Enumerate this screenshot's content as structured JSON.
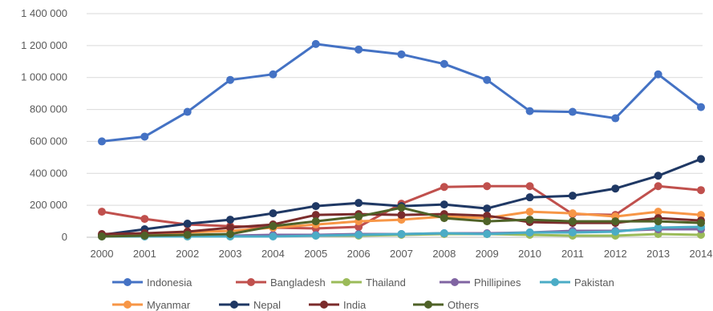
{
  "chart_data": {
    "type": "line",
    "title": "",
    "xlabel": "",
    "ylabel": "",
    "x": [
      "2000",
      "2001",
      "2002",
      "2003",
      "2004",
      "2005",
      "2006",
      "2007",
      "2008",
      "2009",
      "2010",
      "2011",
      "2012",
      "2013",
      "2014"
    ],
    "ylim": [
      0,
      1400000
    ],
    "yticks": [
      0,
      200000,
      400000,
      600000,
      800000,
      1000000,
      1200000,
      1400000
    ],
    "ytick_labels": [
      "0",
      "200 000",
      "400 000",
      "600 000",
      "800 000",
      "1 000 000",
      "1 200 000",
      "1 400 000"
    ],
    "grid": true,
    "legend_position": "bottom",
    "series": [
      {
        "name": "Indonesia",
        "color": "#4472C4",
        "values": [
          600000,
          630000,
          785000,
          985000,
          1020000,
          1210000,
          1175000,
          1145000,
          1085000,
          985000,
          790000,
          785000,
          745000,
          1020000,
          815000
        ]
      },
      {
        "name": "Bangladesh",
        "color": "#C0504D",
        "values": [
          160000,
          115000,
          80000,
          70000,
          60000,
          55000,
          65000,
          210000,
          315000,
          320000,
          320000,
          145000,
          140000,
          320000,
          295000
        ]
      },
      {
        "name": "Thailand",
        "color": "#9BBB59",
        "values": [
          5000,
          5000,
          5000,
          5000,
          10000,
          10000,
          10000,
          15000,
          20000,
          20000,
          15000,
          10000,
          10000,
          20000,
          15000
        ]
      },
      {
        "name": "Phillipines",
        "color": "#8064A2",
        "values": [
          10000,
          10000,
          10000,
          10000,
          15000,
          15000,
          20000,
          20000,
          25000,
          25000,
          30000,
          40000,
          40000,
          50000,
          50000
        ]
      },
      {
        "name": "Pakistan",
        "color": "#4BACC6",
        "values": [
          5000,
          5000,
          5000,
          5000,
          5000,
          10000,
          15000,
          20000,
          25000,
          20000,
          30000,
          30000,
          35000,
          60000,
          65000
        ]
      },
      {
        "name": "Myanmar",
        "color": "#F79646",
        "values": [
          10000,
          15000,
          30000,
          40000,
          60000,
          80000,
          100000,
          110000,
          130000,
          120000,
          160000,
          150000,
          130000,
          160000,
          140000
        ]
      },
      {
        "name": "Nepal",
        "color": "#1F3864",
        "values": [
          15000,
          50000,
          85000,
          110000,
          150000,
          195000,
          215000,
          195000,
          205000,
          180000,
          250000,
          260000,
          305000,
          385000,
          490000
        ]
      },
      {
        "name": "India",
        "color": "#7B2C2C",
        "values": [
          20000,
          25000,
          35000,
          60000,
          80000,
          140000,
          145000,
          140000,
          145000,
          135000,
          95000,
          90000,
          90000,
          120000,
          105000
        ]
      },
      {
        "name": "Others",
        "color": "#4F6228",
        "values": [
          5000,
          10000,
          15000,
          20000,
          70000,
          100000,
          130000,
          185000,
          120000,
          100000,
          110000,
          100000,
          100000,
          100000,
          90000
        ]
      }
    ]
  }
}
